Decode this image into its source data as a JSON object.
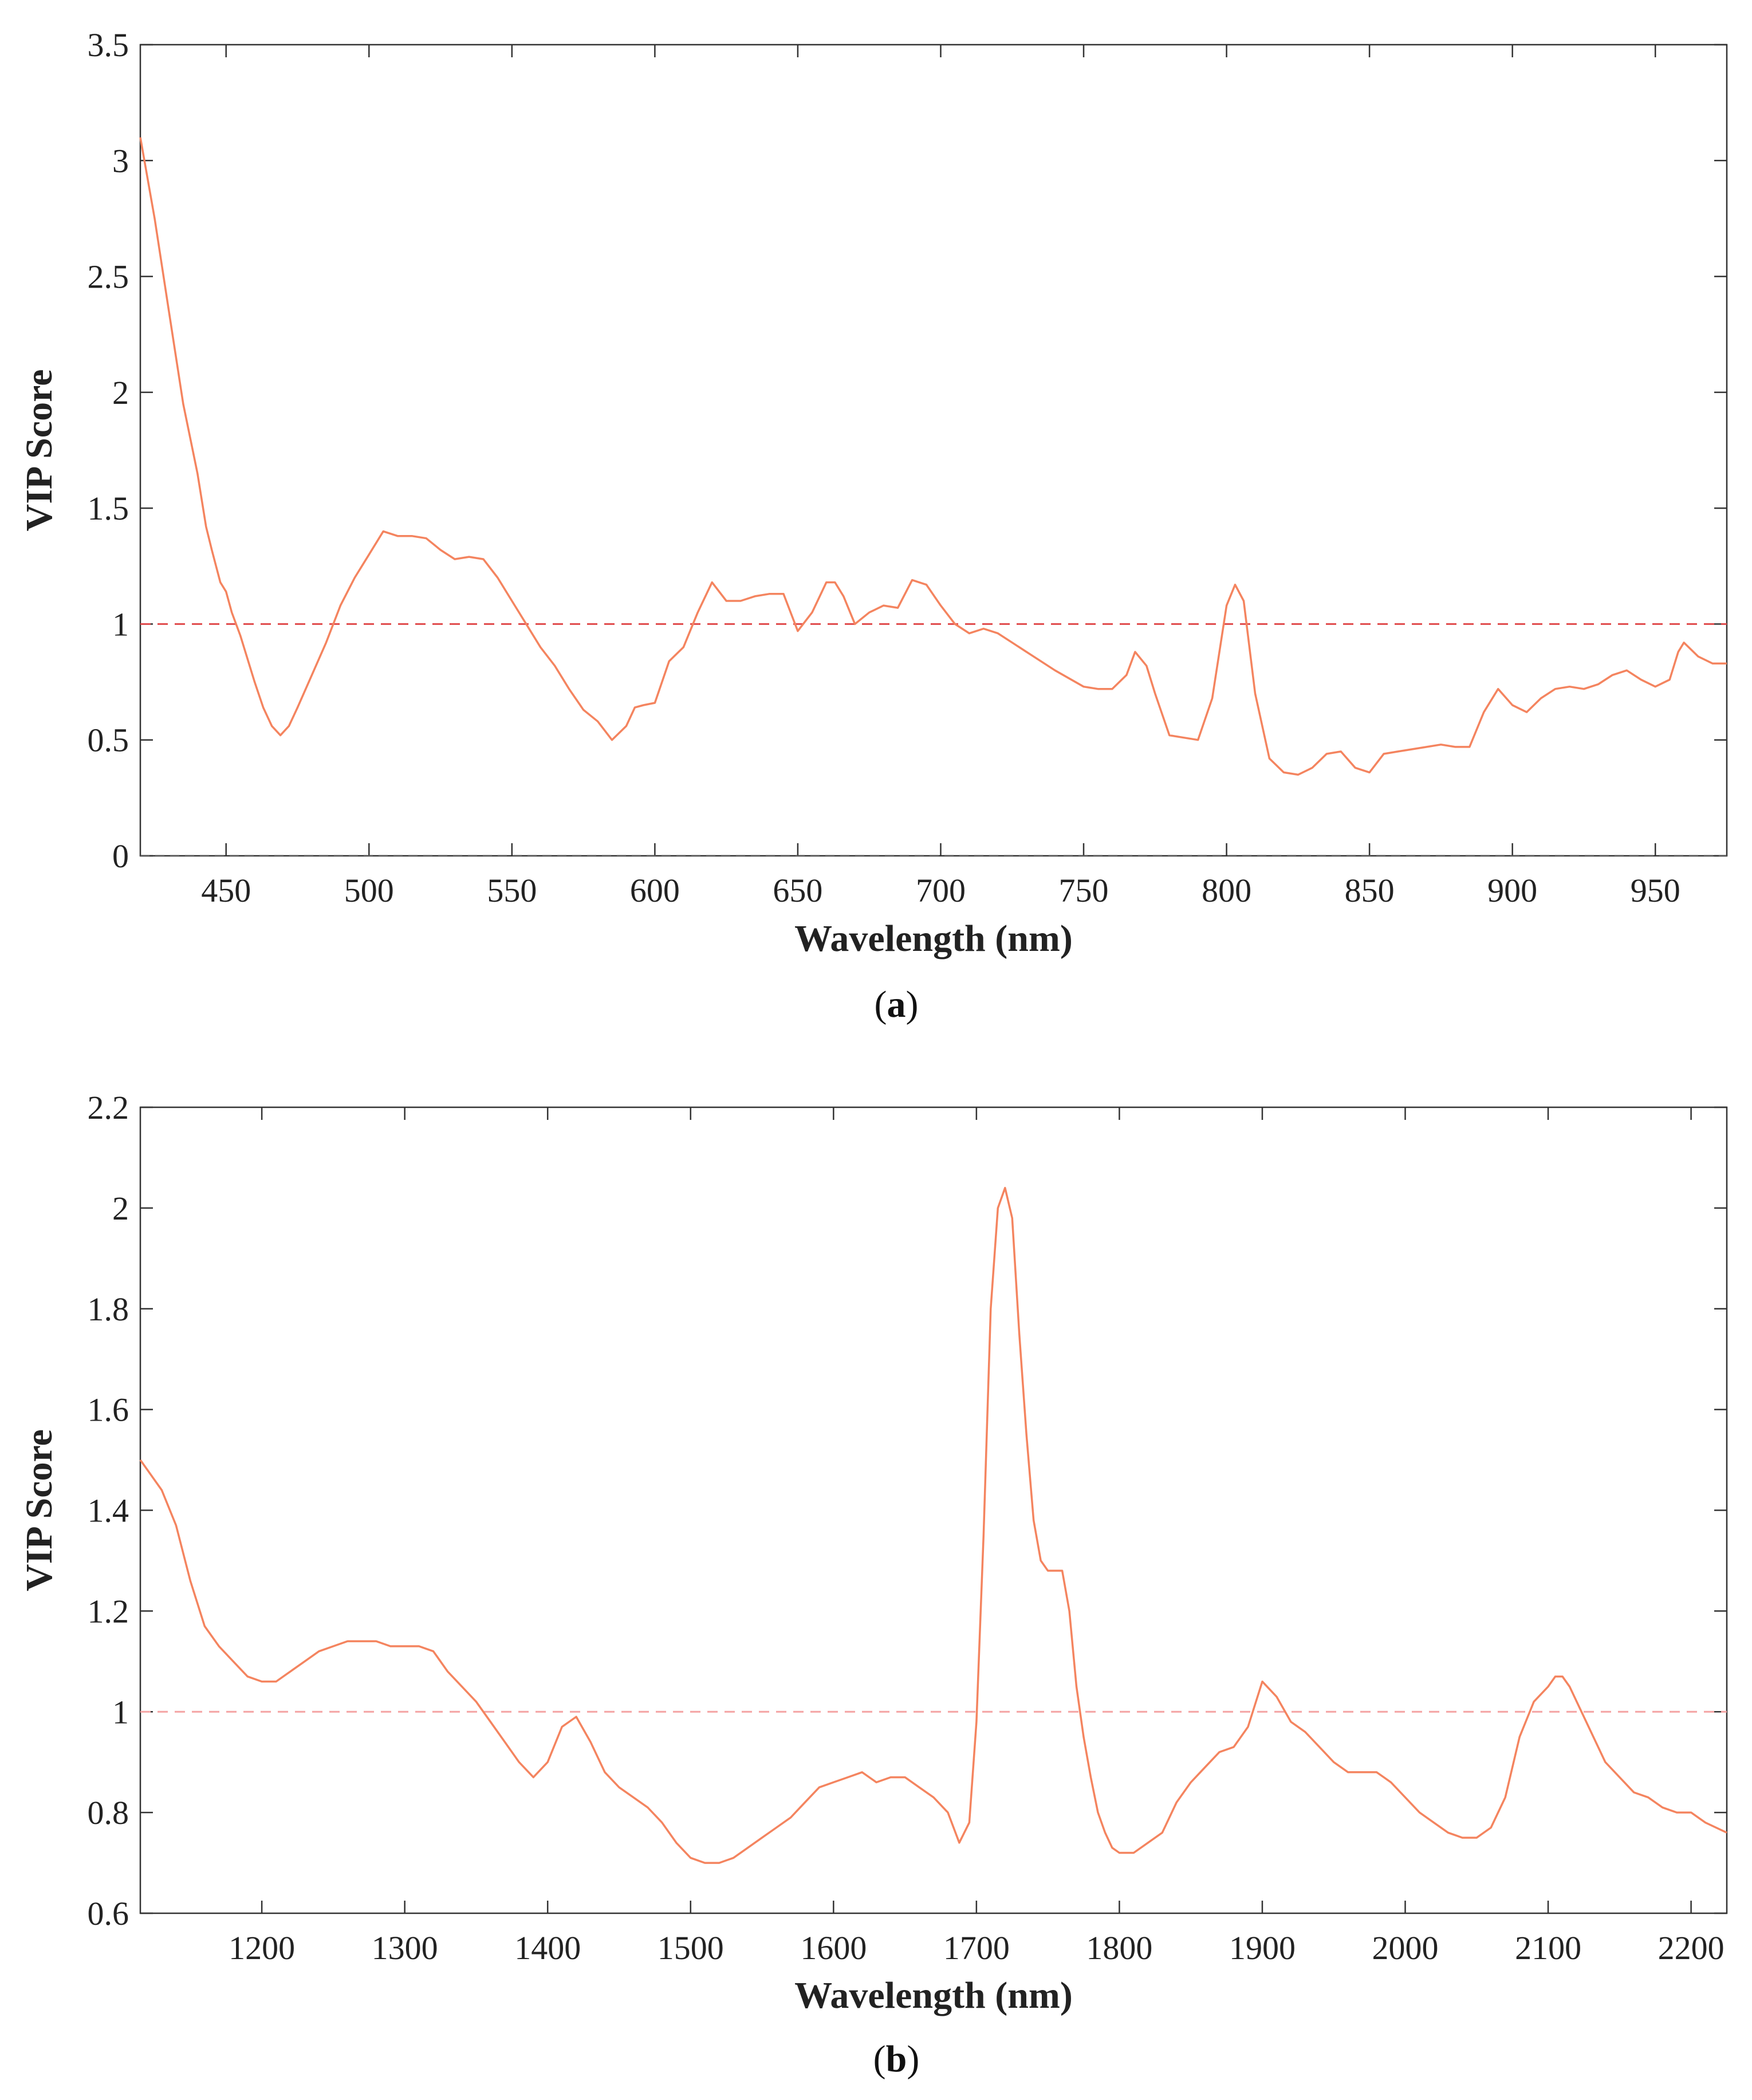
{
  "chart_data": [
    {
      "panel": "(a)",
      "panel_letter": "a",
      "type": "line",
      "xlabel": "Wavelength (nm)",
      "ylabel": "VIP Score",
      "xlim": [
        420,
        975
      ],
      "ylim": [
        0,
        3.5
      ],
      "xticks": [
        450,
        500,
        550,
        600,
        650,
        700,
        750,
        800,
        850,
        900,
        950
      ],
      "yticks": [
        "0",
        "0.5",
        "1",
        "1.5",
        "2",
        "2.5",
        "3",
        "3.5"
      ],
      "threshold": 1,
      "line_color": "#f4845f",
      "threshold_color": "#e0494b",
      "series": [
        {
          "x": [
            420,
            425,
            430,
            435,
            440,
            443,
            445,
            448,
            450,
            452,
            455,
            460,
            463,
            466,
            469,
            472,
            475,
            480,
            485,
            490,
            495,
            500,
            505,
            510,
            515,
            520,
            525,
            530,
            535,
            540,
            545,
            550,
            555,
            560,
            565,
            570,
            575,
            580,
            585,
            590,
            593,
            596,
            600,
            605,
            610,
            615,
            620,
            625,
            630,
            635,
            640,
            645,
            650,
            655,
            660,
            663,
            666,
            670,
            675,
            680,
            685,
            690,
            695,
            700,
            705,
            710,
            715,
            720,
            725,
            730,
            740,
            750,
            755,
            760,
            765,
            768,
            772,
            775,
            780,
            785,
            790,
            795,
            800,
            803,
            806,
            810,
            815,
            820,
            825,
            830,
            835,
            840,
            845,
            850,
            855,
            860,
            865,
            870,
            875,
            880,
            885,
            890,
            895,
            900,
            905,
            910,
            915,
            920,
            925,
            930,
            935,
            940,
            945,
            950,
            955,
            958,
            960,
            965,
            970,
            975
          ],
          "y": [
            3.1,
            2.75,
            2.35,
            1.95,
            1.65,
            1.42,
            1.32,
            1.18,
            1.14,
            1.05,
            0.95,
            0.75,
            0.64,
            0.56,
            0.52,
            0.56,
            0.64,
            0.78,
            0.92,
            1.08,
            1.2,
            1.3,
            1.4,
            1.38,
            1.38,
            1.37,
            1.32,
            1.28,
            1.29,
            1.28,
            1.2,
            1.1,
            1.0,
            0.9,
            0.82,
            0.72,
            0.63,
            0.58,
            0.5,
            0.56,
            0.64,
            0.65,
            0.66,
            0.84,
            0.9,
            1.05,
            1.18,
            1.1,
            1.1,
            1.12,
            1.13,
            1.13,
            0.97,
            1.05,
            1.18,
            1.18,
            1.12,
            1.0,
            1.05,
            1.08,
            1.07,
            1.19,
            1.17,
            1.08,
            1.0,
            0.96,
            0.98,
            0.96,
            0.92,
            0.88,
            0.8,
            0.73,
            0.72,
            0.72,
            0.78,
            0.88,
            0.82,
            0.7,
            0.52,
            0.51,
            0.5,
            0.68,
            1.08,
            1.17,
            1.1,
            0.7,
            0.42,
            0.36,
            0.35,
            0.38,
            0.44,
            0.45,
            0.38,
            0.36,
            0.44,
            0.45,
            0.46,
            0.47,
            0.48,
            0.47,
            0.47,
            0.62,
            0.72,
            0.65,
            0.62,
            0.68,
            0.72,
            0.73,
            0.72,
            0.74,
            0.78,
            0.8,
            0.76,
            0.73,
            0.76,
            0.88,
            0.92,
            0.86,
            0.83,
            0.83
          ]
        }
      ]
    },
    {
      "panel": "(b)",
      "panel_letter": "b",
      "type": "line",
      "xlabel": "Wavelength (nm)",
      "ylabel": "VIP Score",
      "xlim": [
        1115,
        2225
      ],
      "ylim": [
        0.6,
        2.2
      ],
      "xticks": [
        1200,
        1300,
        1400,
        1500,
        1600,
        1700,
        1800,
        1900,
        2000,
        2100,
        2200
      ],
      "yticks": [
        "0.6",
        "0.8",
        "1",
        "1.2",
        "1.4",
        "1.6",
        "1.8",
        "2",
        "2.2"
      ],
      "threshold": 1,
      "line_color": "#f4845f",
      "threshold_color": "#f4a3a3",
      "series": [
        {
          "x": [
            1115,
            1130,
            1140,
            1150,
            1160,
            1170,
            1180,
            1190,
            1200,
            1210,
            1220,
            1230,
            1240,
            1250,
            1260,
            1270,
            1280,
            1290,
            1300,
            1310,
            1320,
            1330,
            1340,
            1350,
            1360,
            1370,
            1380,
            1390,
            1400,
            1410,
            1420,
            1430,
            1440,
            1450,
            1460,
            1470,
            1480,
            1490,
            1500,
            1510,
            1520,
            1530,
            1540,
            1550,
            1560,
            1570,
            1580,
            1590,
            1600,
            1610,
            1620,
            1630,
            1640,
            1650,
            1660,
            1670,
            1680,
            1688,
            1695,
            1700,
            1705,
            1710,
            1715,
            1720,
            1725,
            1730,
            1735,
            1740,
            1745,
            1750,
            1755,
            1760,
            1765,
            1770,
            1775,
            1780,
            1785,
            1790,
            1795,
            1800,
            1810,
            1820,
            1830,
            1840,
            1850,
            1860,
            1870,
            1880,
            1890,
            1900,
            1910,
            1920,
            1930,
            1940,
            1950,
            1960,
            1970,
            1980,
            1990,
            2000,
            2010,
            2020,
            2030,
            2040,
            2050,
            2060,
            2070,
            2080,
            2090,
            2100,
            2105,
            2110,
            2115,
            2120,
            2130,
            2140,
            2150,
            2160,
            2170,
            2180,
            2190,
            2200,
            2210,
            2225
          ],
          "y": [
            1.5,
            1.44,
            1.37,
            1.26,
            1.17,
            1.13,
            1.1,
            1.07,
            1.06,
            1.06,
            1.08,
            1.1,
            1.12,
            1.13,
            1.14,
            1.14,
            1.14,
            1.13,
            1.13,
            1.13,
            1.12,
            1.08,
            1.05,
            1.02,
            0.98,
            0.94,
            0.9,
            0.87,
            0.9,
            0.97,
            0.99,
            0.94,
            0.88,
            0.85,
            0.83,
            0.81,
            0.78,
            0.74,
            0.71,
            0.7,
            0.7,
            0.71,
            0.73,
            0.75,
            0.77,
            0.79,
            0.82,
            0.85,
            0.86,
            0.87,
            0.88,
            0.86,
            0.87,
            0.87,
            0.85,
            0.83,
            0.8,
            0.74,
            0.78,
            0.98,
            1.35,
            1.8,
            2.0,
            2.04,
            1.98,
            1.75,
            1.55,
            1.38,
            1.3,
            1.28,
            1.28,
            1.28,
            1.2,
            1.05,
            0.95,
            0.87,
            0.8,
            0.76,
            0.73,
            0.72,
            0.72,
            0.74,
            0.76,
            0.82,
            0.86,
            0.89,
            0.92,
            0.93,
            0.97,
            1.06,
            1.03,
            0.98,
            0.96,
            0.93,
            0.9,
            0.88,
            0.88,
            0.88,
            0.86,
            0.83,
            0.8,
            0.78,
            0.76,
            0.75,
            0.75,
            0.77,
            0.83,
            0.95,
            1.02,
            1.05,
            1.07,
            1.07,
            1.05,
            1.02,
            0.96,
            0.9,
            0.87,
            0.84,
            0.83,
            0.81,
            0.8,
            0.8,
            0.78,
            0.76
          ]
        }
      ]
    }
  ]
}
